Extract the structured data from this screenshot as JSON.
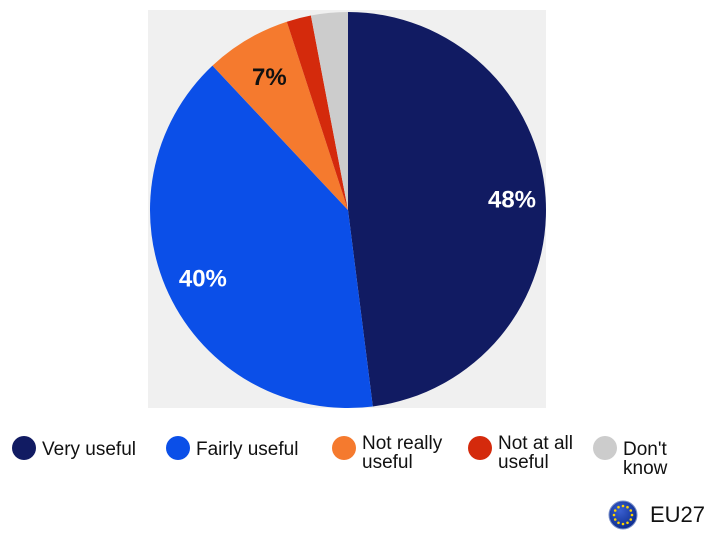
{
  "chart_data": {
    "type": "pie",
    "slices": [
      {
        "label": "Very useful",
        "value": 48,
        "value_label": "48%",
        "color": "#111b62"
      },
      {
        "label": "Fairly useful",
        "value": 40,
        "value_label": "40%",
        "color": "#0b4fe8"
      },
      {
        "label": "Not really\nuseful",
        "value": 7,
        "value_label": "7%",
        "color": "#f57a2e"
      },
      {
        "label": "Not at all\nuseful",
        "value": 2,
        "value_label": "",
        "color": "#d42a0c"
      },
      {
        "label": "Don't know",
        "value": 3,
        "value_label": "",
        "color": "#cccccc"
      }
    ],
    "start": "12 o'clock",
    "direction": "clockwise",
    "legend_placement": "bottom"
  },
  "region": {
    "label": "EU27",
    "icon": "eu-flag-icon"
  }
}
